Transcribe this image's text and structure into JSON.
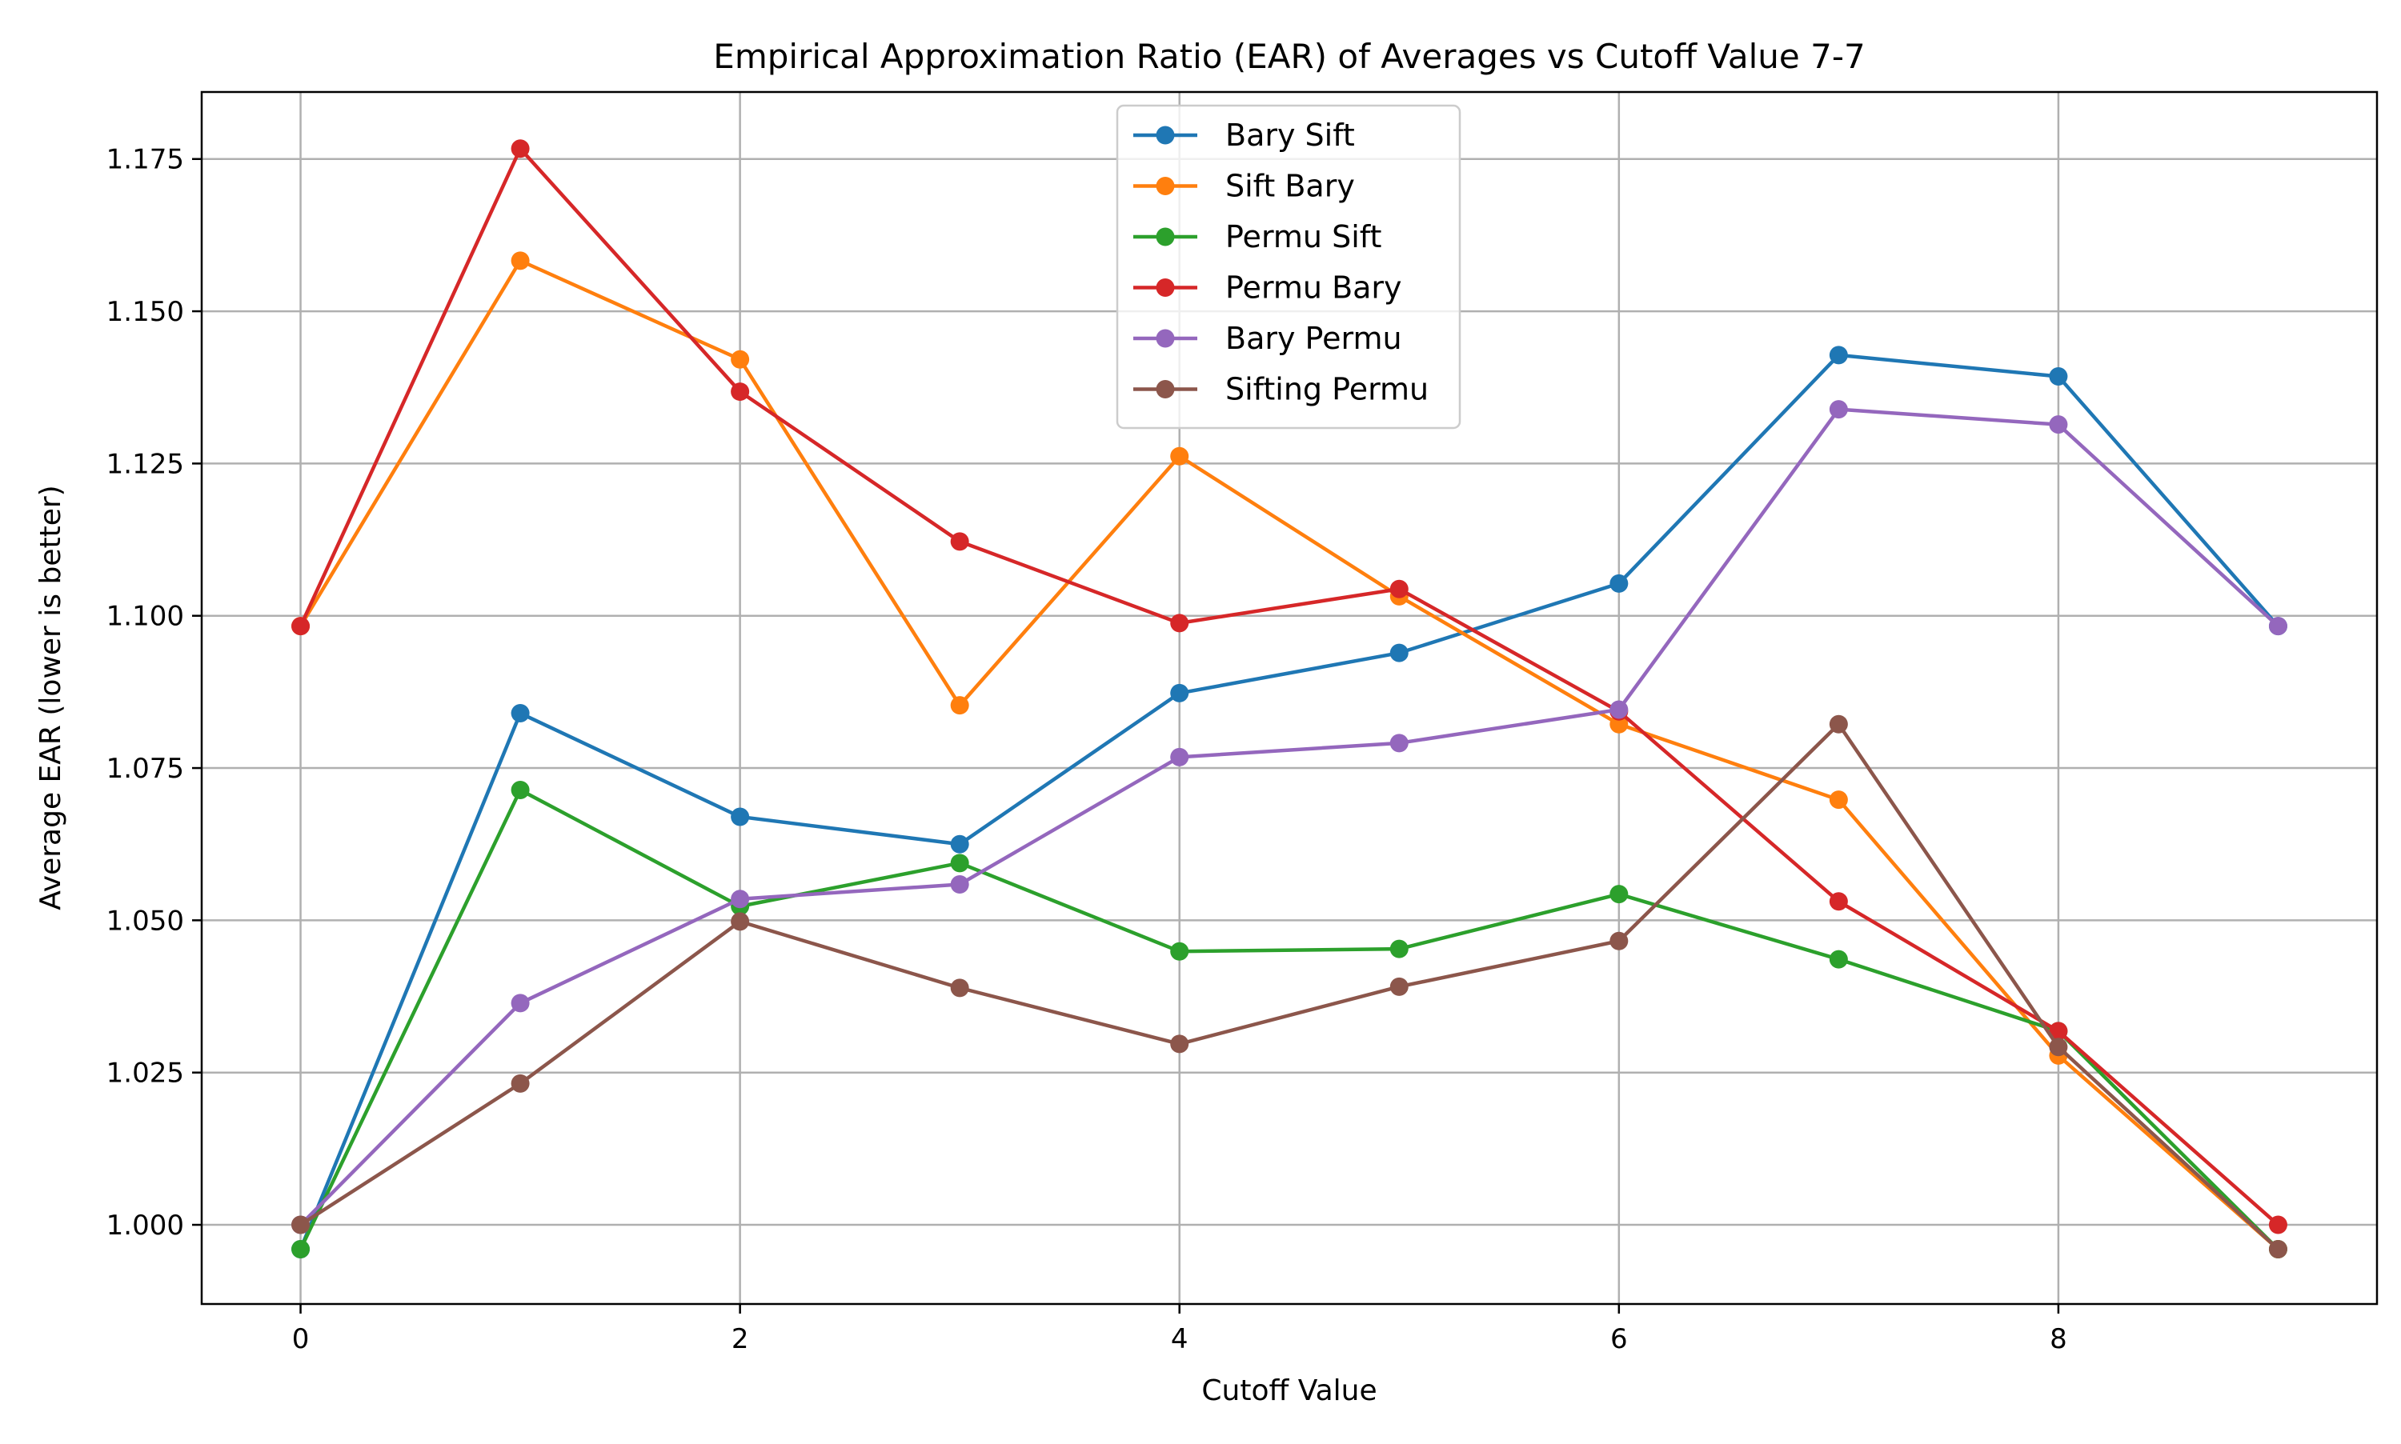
{
  "chart_data": {
    "type": "line",
    "title": "Empirical Approximation Ratio (EAR) of Averages vs Cutoff Value 7-7",
    "xlabel": "Cutoff Value",
    "ylabel": "Average EAR (lower is better)",
    "xlim": [
      -0.45,
      9.45
    ],
    "ylim": [
      0.987,
      1.186
    ],
    "xticks": [
      0,
      2,
      4,
      6,
      8
    ],
    "xtick_labels": [
      "0",
      "2",
      "4",
      "6",
      "8"
    ],
    "yticks": [
      1.0,
      1.025,
      1.05,
      1.075,
      1.1,
      1.125,
      1.15,
      1.175
    ],
    "ytick_labels": [
      "1.000",
      "1.025",
      "1.050",
      "1.075",
      "1.100",
      "1.125",
      "1.150",
      "1.175"
    ],
    "grid": true,
    "legend_position": "top-center",
    "x": [
      0,
      1,
      2,
      3,
      4,
      5,
      6,
      7,
      8,
      9
    ],
    "series": [
      {
        "name": "Bary Sift",
        "color": "#1f77b4",
        "values": [
          0.996,
          1.084,
          1.067,
          1.0625,
          1.0873,
          1.0939,
          1.1053,
          1.1428,
          1.1393,
          1.0983
        ]
      },
      {
        "name": "Sift Bary",
        "color": "#ff7f0e",
        "values": [
          1.0983,
          1.1583,
          1.1421,
          1.0853,
          1.1262,
          1.1032,
          1.0822,
          1.0698,
          1.0278,
          0.996
        ]
      },
      {
        "name": "Permu Sift",
        "color": "#2ca02c",
        "values": [
          0.996,
          1.0714,
          1.0523,
          1.0594,
          1.0449,
          1.0453,
          1.0543,
          1.0436,
          1.0318,
          0.996
        ]
      },
      {
        "name": "Permu Bary",
        "color": "#d62728",
        "values": [
          1.0983,
          1.1767,
          1.1368,
          1.1122,
          1.0988,
          1.1044,
          1.0843,
          1.0531,
          1.0318,
          1.0
        ]
      },
      {
        "name": "Bary Permu",
        "color": "#9467bd",
        "values": [
          1.0,
          1.0364,
          1.0535,
          1.0559,
          1.0768,
          1.0791,
          1.0846,
          1.1339,
          1.1314,
          1.0983
        ]
      },
      {
        "name": "Sifting Permu",
        "color": "#8c564b",
        "values": [
          1.0,
          1.0232,
          1.0498,
          1.0389,
          1.0297,
          1.0391,
          1.0466,
          1.0822,
          1.0292,
          0.996
        ]
      }
    ]
  }
}
